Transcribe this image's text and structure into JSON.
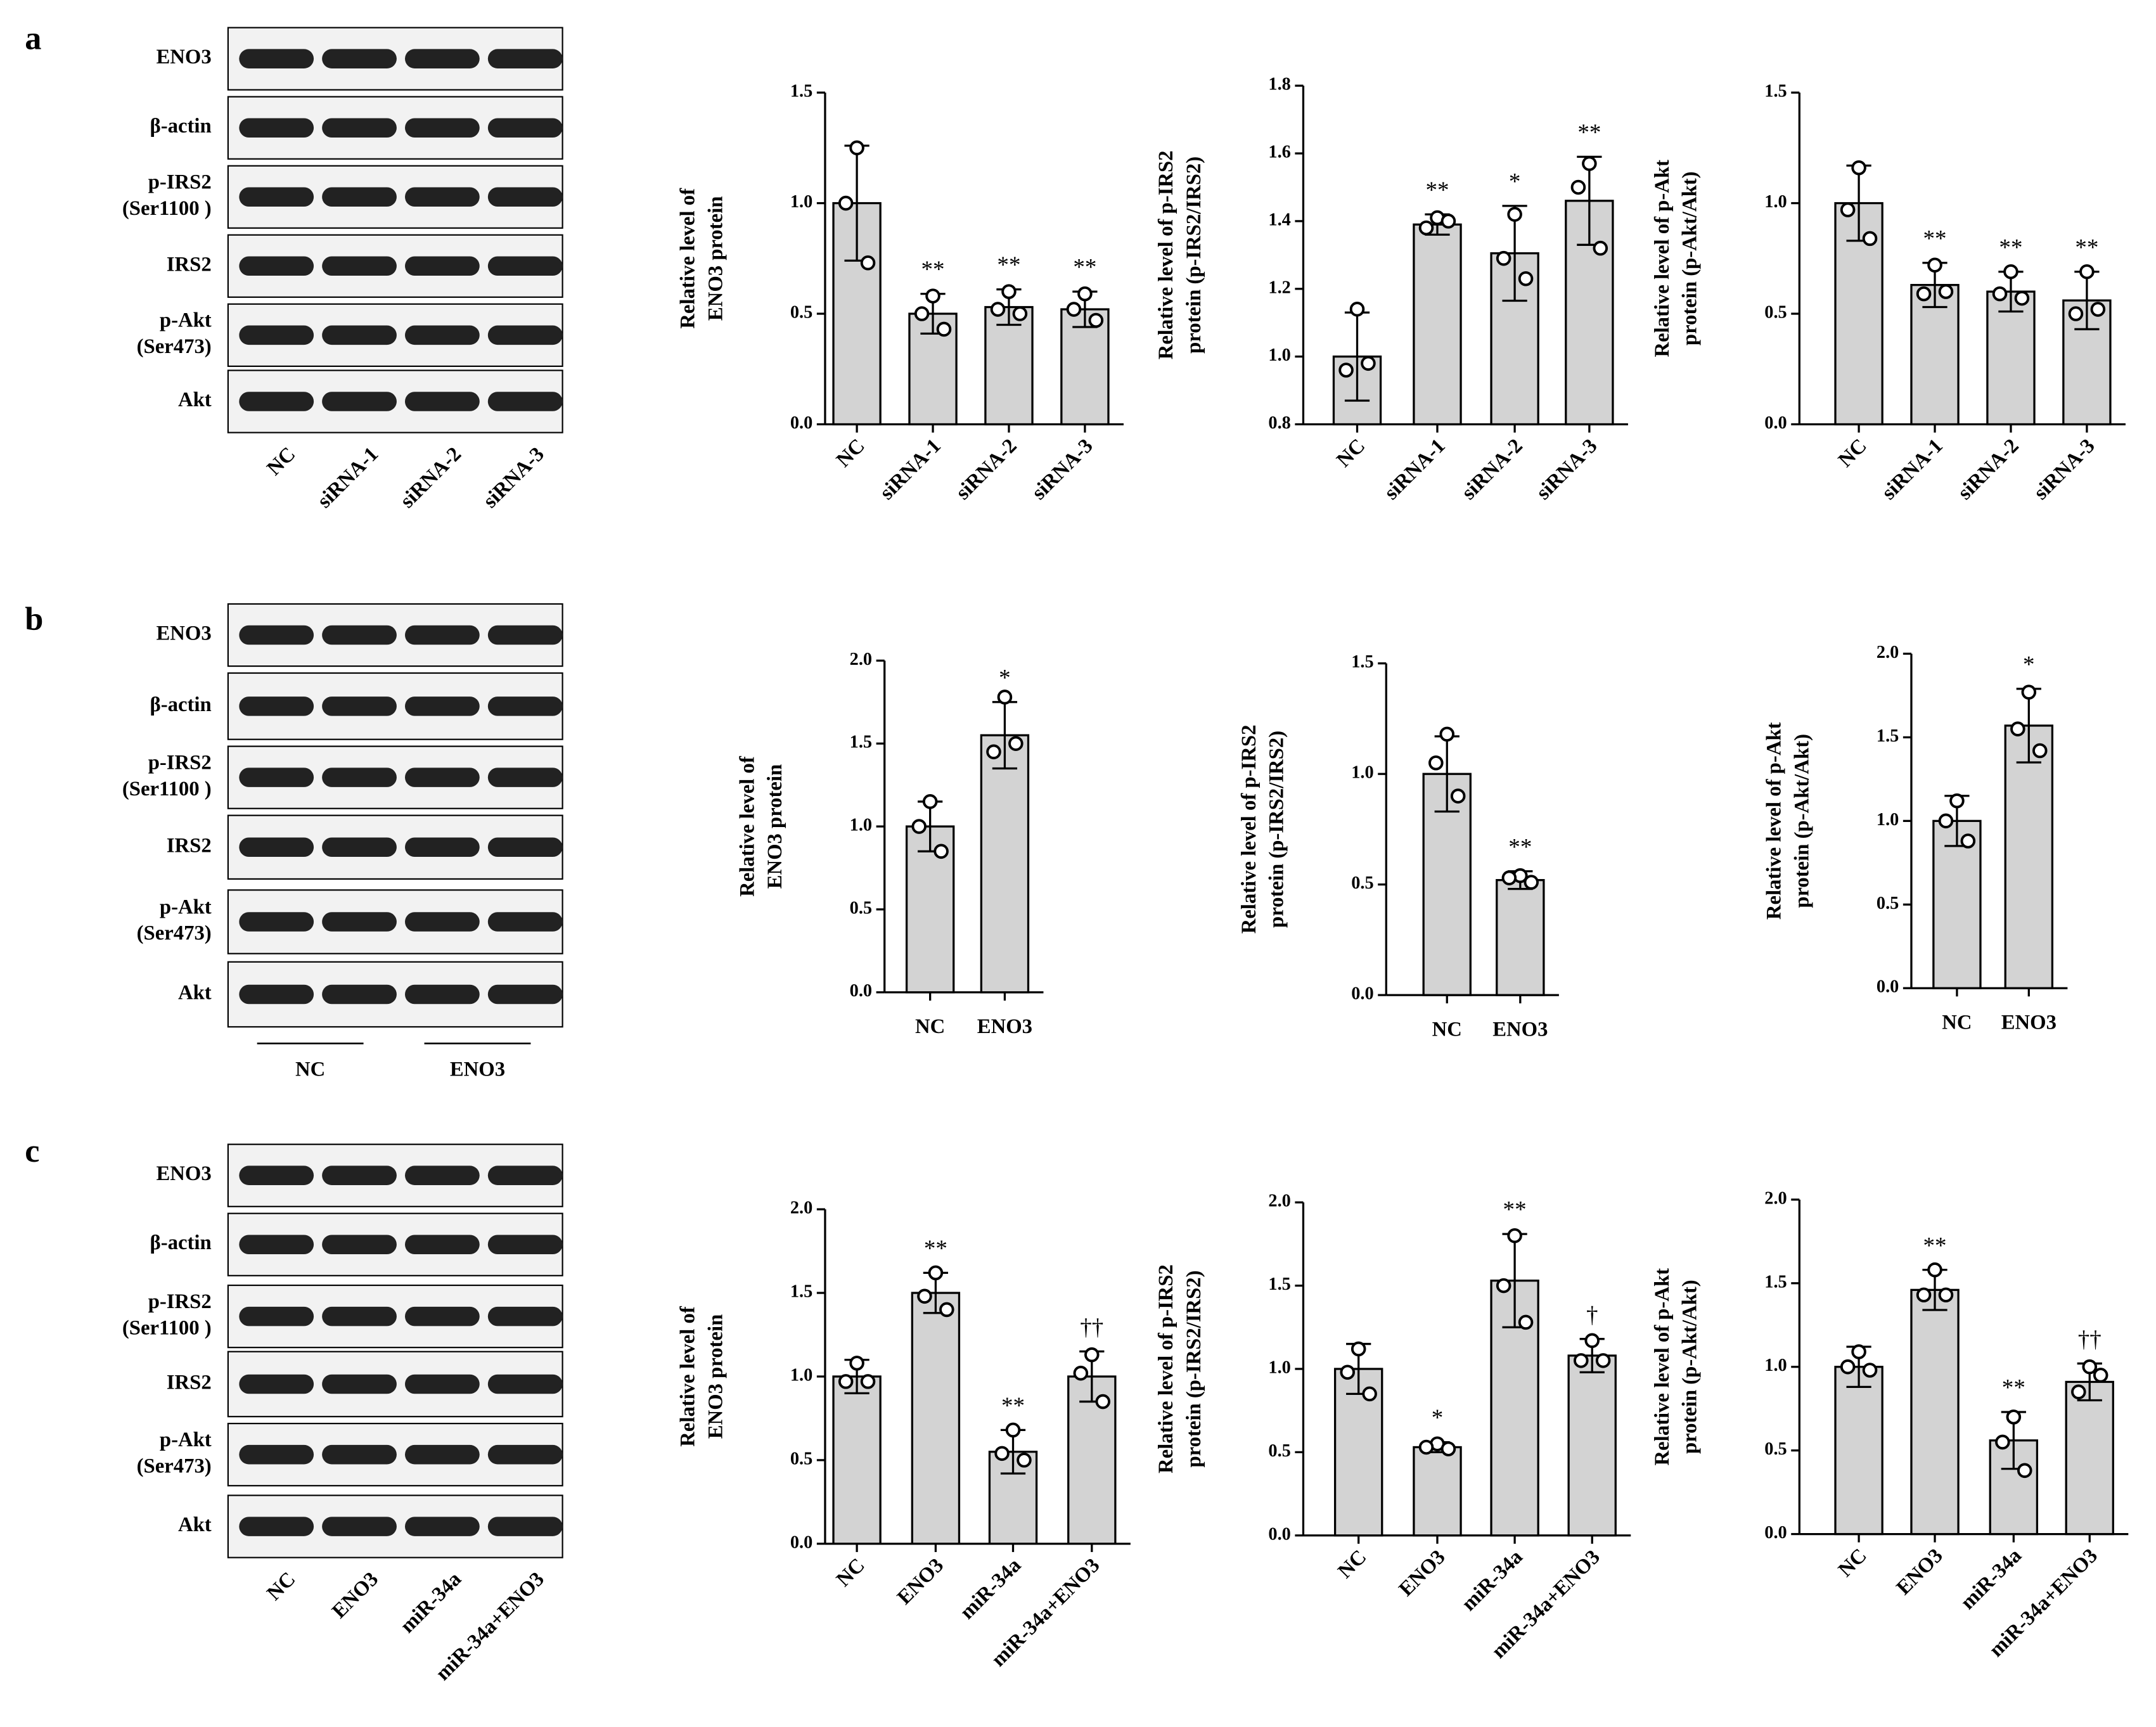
{
  "blots": [
    {
      "panel": "a",
      "rows": [
        [
          "ENO3"
        ],
        [
          "β-actin"
        ],
        [
          "p-IRS2",
          "(Ser1100 )"
        ],
        [
          "IRS2"
        ],
        [
          "p-Akt",
          "(Ser473)"
        ],
        [
          "Akt"
        ]
      ],
      "lanes": [
        "NC",
        "siRNA-1",
        "siRNA-2",
        "siRNA-3"
      ]
    },
    {
      "panel": "b",
      "rows": [
        [
          "ENO3"
        ],
        [
          "β-actin"
        ],
        [
          "p-IRS2",
          "(Ser1100 )"
        ],
        [
          "IRS2"
        ],
        [
          "p-Akt",
          "(Ser473)"
        ],
        [
          "Akt"
        ]
      ],
      "groups": [
        "NC",
        "ENO3"
      ]
    },
    {
      "panel": "c",
      "rows": [
        [
          "ENO3"
        ],
        [
          "β-actin"
        ],
        [
          "p-IRS2",
          "(Ser1100 )"
        ],
        [
          "IRS2"
        ],
        [
          "p-Akt",
          "(Ser473)"
        ],
        [
          "Akt"
        ]
      ],
      "lanes": [
        "NC",
        "ENO3",
        "miR-34a",
        "miR-34a+ENO3"
      ]
    }
  ],
  "chart_data": [
    {
      "type": "bar",
      "ylabel": [
        "Relative level of",
        "ENO3 protein"
      ],
      "categories": [
        "NC",
        "siRNA-1",
        "siRNA-2",
        "siRNA-3"
      ],
      "xtick_rotation": 45,
      "color": "#d3d3d3",
      "values": [
        1.0,
        0.5,
        0.53,
        0.52
      ],
      "errors": [
        0.26,
        0.09,
        0.08,
        0.08
      ],
      "points": [
        [
          1.25,
          1.0,
          0.73
        ],
        [
          0.58,
          0.5,
          0.43
        ],
        [
          0.6,
          0.52,
          0.5
        ],
        [
          0.59,
          0.52,
          0.47
        ]
      ],
      "annotations": [
        null,
        "**",
        "**",
        "**"
      ],
      "ylim": [
        0,
        1.5
      ],
      "yticks": [
        {
          "value": 0,
          "label": "0.0"
        },
        0.5,
        {
          "value": 1,
          "label": "1.0"
        },
        1.5
      ]
    },
    {
      "type": "bar",
      "ylabel": [
        "Relative level of p-IRS2",
        "protein (p-IRS2/IRS2)"
      ],
      "categories": [
        "NC",
        "siRNA-1",
        "siRNA-2",
        "siRNA-3"
      ],
      "xtick_rotation": 45,
      "color": "#d3d3d3",
      "values": [
        1.0,
        1.39,
        1.305,
        1.46
      ],
      "errors": [
        0.13,
        0.03,
        0.14,
        0.13
      ],
      "points": [
        [
          1.14,
          0.96,
          0.98
        ],
        [
          1.41,
          1.38,
          1.4
        ],
        [
          1.42,
          1.29,
          1.23
        ],
        [
          1.57,
          1.5,
          1.32
        ]
      ],
      "annotations": [
        null,
        "**",
        "*",
        "**"
      ],
      "ylim": [
        0.8,
        1.8
      ],
      "yticks": [
        0.8,
        {
          "value": 1,
          "label": "1.0"
        },
        1.2,
        1.4,
        1.6,
        1.8
      ]
    },
    {
      "type": "bar",
      "ylabel": [
        "Relative level of p-Akt",
        "protein (p-Akt/Akt)"
      ],
      "categories": [
        "NC",
        "siRNA-1",
        "siRNA-2",
        "siRNA-3"
      ],
      "xtick_rotation": 45,
      "color": "#d3d3d3",
      "values": [
        1.0,
        0.63,
        0.6,
        0.56
      ],
      "errors": [
        0.17,
        0.1,
        0.09,
        0.13
      ],
      "points": [
        [
          1.16,
          0.97,
          0.84
        ],
        [
          0.72,
          0.59,
          0.6
        ],
        [
          0.69,
          0.59,
          0.57
        ],
        [
          0.69,
          0.5,
          0.52
        ]
      ],
      "annotations": [
        null,
        "**",
        "**",
        "**"
      ],
      "ylim": [
        0,
        1.5
      ],
      "yticks": [
        {
          "value": 0,
          "label": "0.0"
        },
        0.5,
        {
          "value": 1,
          "label": "1.0"
        },
        1.5
      ]
    },
    {
      "type": "bar",
      "ylabel": [
        "Relative level of",
        "ENO3 protein"
      ],
      "categories": [
        "NC",
        "ENO3"
      ],
      "xtick_rotation": 0,
      "color": "#d3d3d3",
      "values": [
        1.0,
        1.55
      ],
      "errors": [
        0.15,
        0.2
      ],
      "points": [
        [
          1.15,
          1.0,
          0.85
        ],
        [
          1.78,
          1.45,
          1.5
        ]
      ],
      "annotations": [
        null,
        "*"
      ],
      "ylim": [
        0,
        2
      ],
      "yticks": [
        {
          "value": 0,
          "label": "0.0"
        },
        0.5,
        {
          "value": 1,
          "label": "1.0"
        },
        1.5,
        {
          "value": 2,
          "label": "2.0"
        }
      ]
    },
    {
      "type": "bar",
      "ylabel": [
        "Relative level of p-IRS2",
        "protein (p-IRS2/IRS2)"
      ],
      "categories": [
        "NC",
        "ENO3"
      ],
      "xtick_rotation": 0,
      "color": "#d3d3d3",
      "values": [
        1.0,
        0.52
      ],
      "errors": [
        0.17,
        0.04
      ],
      "points": [
        [
          1.18,
          1.05,
          0.9
        ],
        [
          0.54,
          0.53,
          0.51
        ]
      ],
      "annotations": [
        null,
        "**"
      ],
      "ylim": [
        0,
        1.5
      ],
      "yticks": [
        {
          "value": 0,
          "label": "0.0"
        },
        0.5,
        {
          "value": 1,
          "label": "1.0"
        },
        1.5
      ]
    },
    {
      "type": "bar",
      "ylabel": [
        "Relative level of p-Akt",
        "protein (p-Akt/Akt)"
      ],
      "categories": [
        "NC",
        "ENO3"
      ],
      "xtick_rotation": 0,
      "color": "#d3d3d3",
      "values": [
        1.0,
        1.57
      ],
      "errors": [
        0.15,
        0.22
      ],
      "points": [
        [
          1.12,
          1.0,
          0.88
        ],
        [
          1.77,
          1.55,
          1.42
        ]
      ],
      "annotations": [
        null,
        "*"
      ],
      "ylim": [
        0,
        2
      ],
      "yticks": [
        {
          "value": 0,
          "label": "0.0"
        },
        0.5,
        {
          "value": 1,
          "label": "1.0"
        },
        1.5,
        {
          "value": 2,
          "label": "2.0"
        }
      ]
    },
    {
      "type": "bar",
      "ylabel": [
        "Relative level of",
        "ENO3 protein"
      ],
      "categories": [
        "NC",
        "ENO3",
        "miR-34a",
        "miR-34a+ENO3"
      ],
      "xtick_rotation": 45,
      "color": "#d3d3d3",
      "values": [
        1.0,
        1.5,
        0.55,
        1.0
      ],
      "errors": [
        0.1,
        0.12,
        0.13,
        0.15
      ],
      "points": [
        [
          1.08,
          0.97,
          0.97
        ],
        [
          1.62,
          1.48,
          1.4
        ],
        [
          0.68,
          0.54,
          0.5
        ],
        [
          1.13,
          1.02,
          0.85
        ]
      ],
      "annotations": [
        null,
        "**",
        "**",
        "††"
      ],
      "ylim": [
        0,
        2
      ],
      "yticks": [
        {
          "value": 0,
          "label": "0.0"
        },
        0.5,
        {
          "value": 1,
          "label": "1.0"
        },
        1.5,
        {
          "value": 2,
          "label": "2.0"
        }
      ]
    },
    {
      "type": "bar",
      "ylabel": [
        "Relative level of p-IRS2",
        "protein (p-IRS2/IRS2)"
      ],
      "categories": [
        "NC",
        "ENO3",
        "miR-34a",
        "miR-34a+ENO3"
      ],
      "xtick_rotation": 45,
      "color": "#d3d3d3",
      "values": [
        1.0,
        0.53,
        1.53,
        1.08
      ],
      "errors": [
        0.15,
        0.03,
        0.28,
        0.1
      ],
      "points": [
        [
          1.12,
          0.98,
          0.85
        ],
        [
          0.55,
          0.53,
          0.52
        ],
        [
          1.8,
          1.5,
          1.28
        ],
        [
          1.17,
          1.05,
          1.05
        ]
      ],
      "annotations": [
        null,
        "*",
        "**",
        "†"
      ],
      "ylim": [
        0,
        2
      ],
      "yticks": [
        {
          "value": 0,
          "label": "0.0"
        },
        0.5,
        {
          "value": 1,
          "label": "1.0"
        },
        1.5,
        {
          "value": 2,
          "label": "2.0"
        }
      ]
    },
    {
      "type": "bar",
      "ylabel": [
        "Relative level of p-Akt",
        "protein (p-Akt/Akt)"
      ],
      "categories": [
        "NC",
        "ENO3",
        "miR-34a",
        "miR-34a+ENO3"
      ],
      "xtick_rotation": 45,
      "color": "#d3d3d3",
      "values": [
        1.0,
        1.46,
        0.56,
        0.91
      ],
      "errors": [
        0.12,
        0.12,
        0.17,
        0.11
      ],
      "points": [
        [
          1.09,
          1.0,
          0.98
        ],
        [
          1.58,
          1.43,
          1.43
        ],
        [
          0.7,
          0.55,
          0.38
        ],
        [
          1.0,
          0.85,
          0.95
        ]
      ],
      "annotations": [
        null,
        "**",
        "**",
        "††"
      ],
      "ylim": [
        0,
        2
      ],
      "yticks": [
        {
          "value": 0,
          "label": "0.0"
        },
        0.5,
        {
          "value": 1,
          "label": "1.0"
        },
        1.5,
        {
          "value": 2,
          "label": "2.0"
        }
      ]
    }
  ]
}
